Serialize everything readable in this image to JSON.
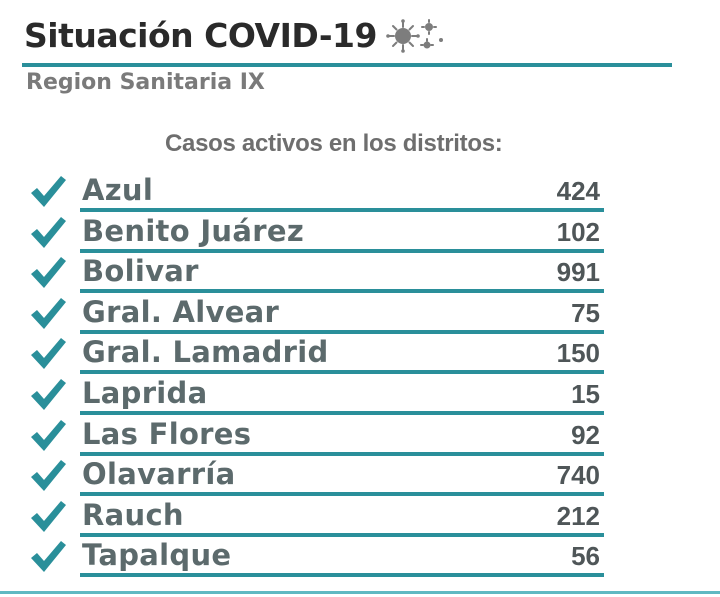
{
  "header": {
    "title": "Situación COVID-19",
    "subtitle": "Region Sanitaria IX"
  },
  "section": {
    "heading": "Casos activos en los distritos:"
  },
  "colors": {
    "accent": "#2a8f9a",
    "check": "#2a8f9a"
  },
  "districts": [
    {
      "name": "Azul",
      "value": "424"
    },
    {
      "name": "Benito Juárez",
      "value": "102"
    },
    {
      "name": "Bolivar",
      "value": "991"
    },
    {
      "name": "Gral. Alvear",
      "value": "75"
    },
    {
      "name": "Gral. Lamadrid",
      "value": "150"
    },
    {
      "name": "Laprida",
      "value": "15"
    },
    {
      "name": "Las Flores",
      "value": "92"
    },
    {
      "name": "Olavarría",
      "value": "740"
    },
    {
      "name": "Rauch",
      "value": "212"
    },
    {
      "name": "Tapalque",
      "value": "56"
    }
  ]
}
